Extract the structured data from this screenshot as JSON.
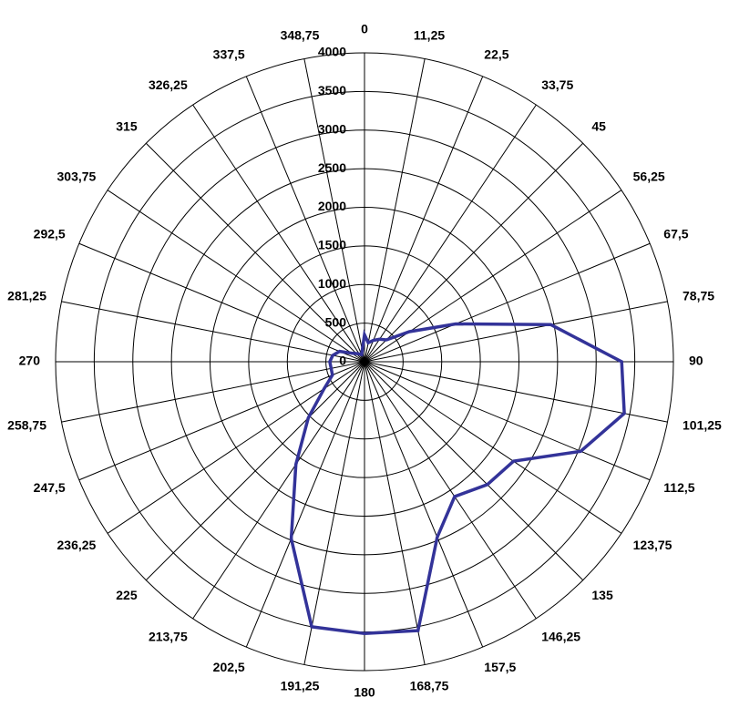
{
  "chart_data": {
    "type": "radar",
    "categories": [
      "0",
      "11,25",
      "22,5",
      "33,75",
      "45",
      "56,25",
      "67,5",
      "78,75",
      "90",
      "101,25",
      "112,5",
      "123,75",
      "135",
      "146,25",
      "157,5",
      "168,75",
      "180",
      "191,25",
      "202,5",
      "213,75",
      "225",
      "236,25",
      "247,5",
      "258,75",
      "270",
      "281,25",
      "292,5",
      "303,75",
      "315",
      "326,25",
      "337,5",
      "348,75"
    ],
    "series": [
      {
        "color": "#333399",
        "values": [
          350,
          250,
          300,
          350,
          400,
          700,
          1280,
          2460,
          3330,
          3430,
          3030,
          2320,
          2250,
          2100,
          2460,
          3550,
          3520,
          3500,
          2480,
          1600,
          1030,
          630,
          450,
          440,
          450,
          420,
          350,
          200,
          150,
          120,
          100,
          150
        ]
      }
    ],
    "rlim": [
      0,
      4000
    ],
    "rticks": [
      0,
      500,
      1000,
      1500,
      2000,
      2500,
      3000,
      3500,
      4000
    ],
    "grid": true
  }
}
